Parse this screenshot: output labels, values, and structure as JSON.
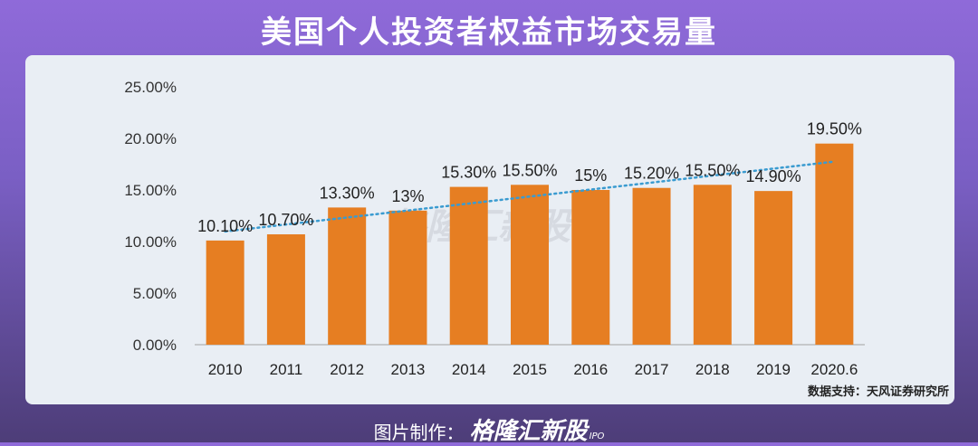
{
  "title": "美国个人投资者权益市场交易量",
  "source": "数据支持：天风证券研究所",
  "footer": {
    "label": "图片制作：",
    "brand": "格隆汇新股",
    "ipo": "IPO"
  },
  "watermark": "格隆汇新股",
  "colors": {
    "bar": "#e67e22",
    "trend": "#3a9bd0",
    "axis": "#bbbbbb"
  },
  "chart_data": {
    "type": "bar",
    "categories": [
      "2010",
      "2011",
      "2012",
      "2013",
      "2014",
      "2015",
      "2016",
      "2017",
      "2018",
      "2019",
      "2020.6"
    ],
    "values": [
      10.1,
      10.7,
      13.3,
      13.0,
      15.3,
      15.5,
      15.0,
      15.2,
      15.5,
      14.9,
      19.5
    ],
    "data_labels": [
      "10.10%",
      "10.70%",
      "13.30%",
      "13%",
      "15.30%",
      "15.50%",
      "15%",
      "15.20%",
      "15.50%",
      "14.90%",
      "19.50%"
    ],
    "y_ticks": [
      "0.00%",
      "5.00%",
      "10.00%",
      "15.00%",
      "20.00%",
      "25.00%"
    ],
    "ylim": [
      0,
      25
    ],
    "trendline": "linear",
    "grid": false
  }
}
